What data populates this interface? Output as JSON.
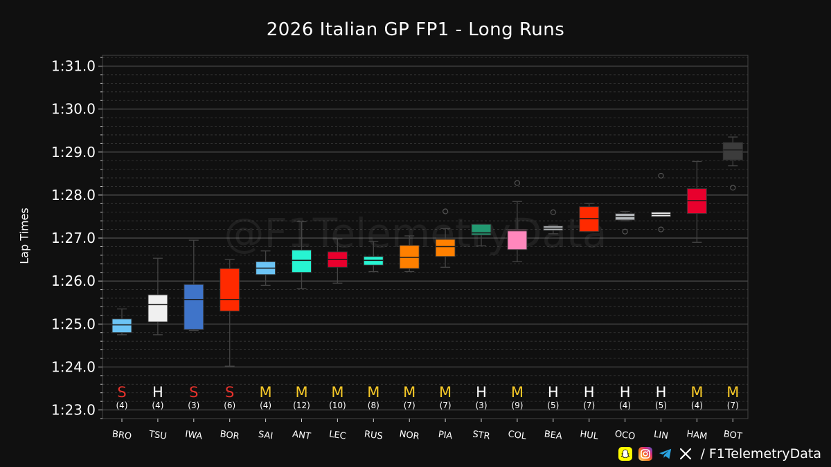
{
  "chart_data": {
    "type": "box",
    "title": "2026 Italian GP FP1 - Long Runs",
    "ylabel": "Lap Times",
    "xlabel": "",
    "watermark": "@F1TelemetryData",
    "ylim": [
      82.8,
      91.25
    ],
    "y_ticks": [
      {
        "value": 83,
        "label": "1:23.0"
      },
      {
        "value": 84,
        "label": "1:24.0"
      },
      {
        "value": 85,
        "label": "1:25.0"
      },
      {
        "value": 86,
        "label": "1:26.0"
      },
      {
        "value": 87,
        "label": "1:27.0"
      },
      {
        "value": 88,
        "label": "1:28.0"
      },
      {
        "value": 89,
        "label": "1:29.0"
      },
      {
        "value": 90,
        "label": "1:30.0"
      },
      {
        "value": 91,
        "label": "1:31.0"
      }
    ],
    "grid": true,
    "compound_colors": {
      "S": "#e8322c",
      "M": "#f7c928",
      "H": "#ffffff"
    },
    "drivers": [
      {
        "name": "BRO",
        "color": "#6cc4f5",
        "compound": "S",
        "laps": "(4)",
        "whisker_low": 84.75,
        "q1": 84.8,
        "median": 84.98,
        "q3": 85.12,
        "whisker_high": 85.35,
        "outliers": []
      },
      {
        "name": "TSU",
        "color": "#f0f0f0",
        "compound": "H",
        "laps": "(4)",
        "whisker_low": 84.75,
        "q1": 85.05,
        "median": 85.45,
        "q3": 85.68,
        "whisker_high": 86.53,
        "outliers": []
      },
      {
        "name": "IWA",
        "color": "#3f74c9",
        "compound": "S",
        "laps": "(3)",
        "whisker_low": 84.85,
        "q1": 84.87,
        "median": 85.57,
        "q3": 85.92,
        "whisker_high": 86.95,
        "outliers": []
      },
      {
        "name": "BOR",
        "color": "#ff2a00",
        "compound": "S",
        "laps": "(6)",
        "whisker_low": 84.02,
        "q1": 85.3,
        "median": 85.57,
        "q3": 86.29,
        "whisker_high": 86.5,
        "outliers": []
      },
      {
        "name": "SAI",
        "color": "#6cc4f5",
        "compound": "M",
        "laps": "(4)",
        "whisker_low": 85.9,
        "q1": 86.15,
        "median": 86.3,
        "q3": 86.45,
        "whisker_high": 86.7,
        "outliers": []
      },
      {
        "name": "ANT",
        "color": "#27f4d2",
        "compound": "M",
        "laps": "(12)",
        "whisker_low": 85.82,
        "q1": 86.2,
        "median": 86.48,
        "q3": 86.72,
        "whisker_high": 87.38,
        "outliers": []
      },
      {
        "name": "LEC",
        "color": "#e8002d",
        "compound": "M",
        "laps": "(10)",
        "whisker_low": 85.95,
        "q1": 86.32,
        "median": 86.5,
        "q3": 86.68,
        "whisker_high": 86.98,
        "outliers": []
      },
      {
        "name": "RUS",
        "color": "#27f4d2",
        "compound": "M",
        "laps": "(8)",
        "whisker_low": 86.22,
        "q1": 86.37,
        "median": 86.48,
        "q3": 86.57,
        "whisker_high": 86.92,
        "outliers": []
      },
      {
        "name": "NOR",
        "color": "#ff8000",
        "compound": "M",
        "laps": "(7)",
        "whisker_low": 86.22,
        "q1": 86.29,
        "median": 86.55,
        "q3": 86.83,
        "whisker_high": 87.05,
        "outliers": []
      },
      {
        "name": "PIA",
        "color": "#ff8000",
        "compound": "M",
        "laps": "(7)",
        "whisker_low": 86.32,
        "q1": 86.57,
        "median": 86.8,
        "q3": 86.97,
        "whisker_high": 87.22,
        "outliers": [
          87.62
        ]
      },
      {
        "name": "STR",
        "color": "#229971",
        "compound": "H",
        "laps": "(3)",
        "whisker_low": 86.82,
        "q1": 87.07,
        "median": 87.12,
        "q3": 87.32,
        "whisker_high": 87.32,
        "outliers": []
      },
      {
        "name": "COL",
        "color": "#ff87bc",
        "compound": "M",
        "laps": "(9)",
        "whisker_low": 86.45,
        "q1": 86.73,
        "median": 87.17,
        "q3": 87.2,
        "whisker_high": 87.85,
        "outliers": [
          88.28
        ]
      },
      {
        "name": "BEA",
        "color": "#b6babd",
        "compound": "H",
        "laps": "(5)",
        "whisker_low": 87.1,
        "q1": 87.18,
        "median": 87.23,
        "q3": 87.28,
        "whisker_high": 87.3,
        "outliers": [
          87.6
        ]
      },
      {
        "name": "HUL",
        "color": "#ff2a00",
        "compound": "H",
        "laps": "(7)",
        "whisker_low": 87.15,
        "q1": 87.15,
        "median": 87.45,
        "q3": 87.73,
        "whisker_high": 87.8,
        "outliers": []
      },
      {
        "name": "OCO",
        "color": "#b6babd",
        "compound": "H",
        "laps": "(4)",
        "whisker_low": 87.4,
        "q1": 87.42,
        "median": 87.5,
        "q3": 87.57,
        "whisker_high": 87.62,
        "outliers": [
          87.15
        ]
      },
      {
        "name": "LIN",
        "color": "#f0f0f0",
        "compound": "H",
        "laps": "(5)",
        "whisker_low": 87.5,
        "q1": 87.5,
        "median": 87.55,
        "q3": 87.6,
        "whisker_high": 87.6,
        "outliers": [
          88.45,
          87.2
        ]
      },
      {
        "name": "HAM",
        "color": "#e8002d",
        "compound": "M",
        "laps": "(4)",
        "whisker_low": 86.9,
        "q1": 87.57,
        "median": 87.87,
        "q3": 88.15,
        "whisker_high": 88.78,
        "outliers": []
      },
      {
        "name": "BOT",
        "color": "#3c3c3c",
        "compound": "M",
        "laps": "(7)",
        "whisker_low": 88.68,
        "q1": 88.82,
        "median": 89.05,
        "q3": 89.22,
        "whisker_high": 89.35,
        "outliers": [
          88.17
        ]
      }
    ]
  },
  "footer": {
    "handle": "/ F1TelemetryData",
    "icons": [
      "snapchat-icon",
      "instagram-icon",
      "telegram-icon",
      "x-icon"
    ]
  }
}
